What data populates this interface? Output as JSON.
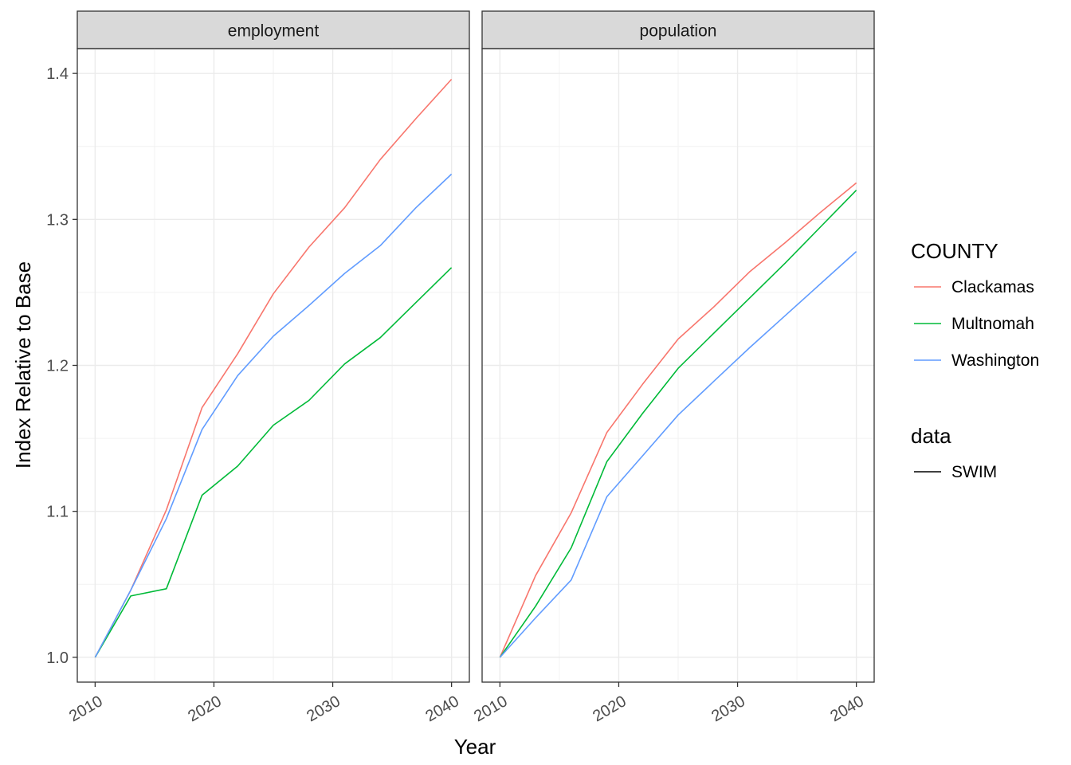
{
  "chart_data": {
    "type": "line",
    "xlabel": "Year",
    "ylabel": "Index Relative to Base",
    "xlim": [
      2008.5,
      2041.5
    ],
    "ylim": [
      0.983,
      1.417
    ],
    "x_ticks": [
      2010,
      2020,
      2030,
      2040
    ],
    "x_tick_labels": [
      "2010",
      "2020",
      "2030",
      "2040"
    ],
    "y_ticks": [
      1.0,
      1.1,
      1.2,
      1.3,
      1.4
    ],
    "y_tick_labels": [
      "1.0",
      "1.1",
      "1.2",
      "1.3",
      "1.4"
    ],
    "grid": true,
    "legend_position": "right",
    "legend": {
      "county_title": "COUNTY",
      "data_title": "data",
      "data_items": [
        "SWIM"
      ]
    },
    "panels": [
      {
        "title": "employment",
        "series": [
          {
            "name": "Clackamas",
            "color": "#F8766D",
            "x": [
              2010,
              2013,
              2016,
              2019,
              2022,
              2025,
              2028,
              2031,
              2034,
              2037,
              2040
            ],
            "values": [
              1.0,
              1.046,
              1.101,
              1.171,
              1.208,
              1.249,
              1.281,
              1.308,
              1.341,
              1.369,
              1.396
            ]
          },
          {
            "name": "Multnomah",
            "color": "#00BA38",
            "x": [
              2010,
              2013,
              2016,
              2019,
              2022,
              2025,
              2028,
              2031,
              2034,
              2037,
              2040
            ],
            "values": [
              1.0,
              1.042,
              1.047,
              1.111,
              1.131,
              1.159,
              1.176,
              1.201,
              1.219,
              1.243,
              1.267
            ]
          },
          {
            "name": "Washington",
            "color": "#619CFF",
            "x": [
              2010,
              2013,
              2016,
              2019,
              2022,
              2025,
              2028,
              2031,
              2034,
              2037,
              2040
            ],
            "values": [
              1.0,
              1.046,
              1.095,
              1.156,
              1.193,
              1.22,
              1.241,
              1.263,
              1.282,
              1.308,
              1.331
            ]
          }
        ]
      },
      {
        "title": "population",
        "series": [
          {
            "name": "Clackamas",
            "color": "#F8766D",
            "x": [
              2010,
              2013,
              2016,
              2019,
              2022,
              2025,
              2028,
              2031,
              2034,
              2037,
              2040
            ],
            "values": [
              1.0,
              1.056,
              1.099,
              1.154,
              1.187,
              1.218,
              1.24,
              1.264,
              1.284,
              1.305,
              1.325
            ]
          },
          {
            "name": "Multnomah",
            "color": "#00BA38",
            "x": [
              2010,
              2013,
              2016,
              2019,
              2022,
              2025,
              2028,
              2031,
              2034,
              2037,
              2040
            ],
            "values": [
              1.0,
              1.035,
              1.075,
              1.134,
              1.167,
              1.198,
              1.222,
              1.246,
              1.27,
              1.295,
              1.32
            ]
          },
          {
            "name": "Washington",
            "color": "#619CFF",
            "x": [
              2010,
              2013,
              2016,
              2019,
              2022,
              2025,
              2028,
              2031,
              2034,
              2037,
              2040
            ],
            "values": [
              1.0,
              1.027,
              1.053,
              1.11,
              1.138,
              1.166,
              1.189,
              1.212,
              1.234,
              1.256,
              1.278
            ]
          }
        ]
      }
    ]
  }
}
